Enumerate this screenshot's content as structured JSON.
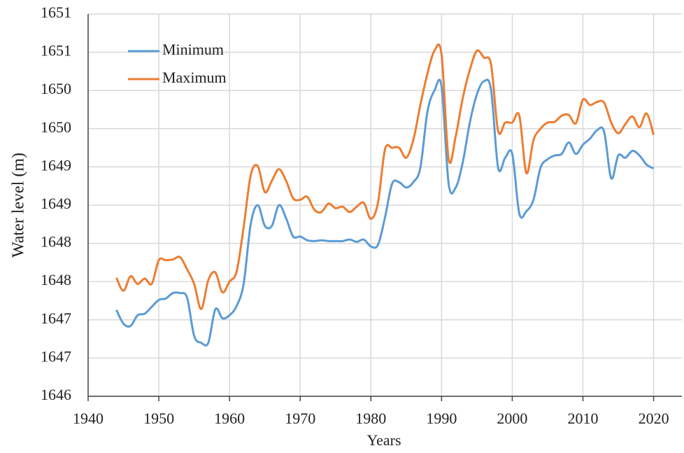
{
  "chart_data": {
    "type": "line",
    "xlabel": "Years",
    "ylabel": "Water level (m)",
    "x": [
      1944,
      1945,
      1946,
      1947,
      1948,
      1949,
      1950,
      1951,
      1952,
      1953,
      1954,
      1955,
      1956,
      1957,
      1958,
      1959,
      1960,
      1961,
      1962,
      1963,
      1964,
      1965,
      1966,
      1967,
      1968,
      1969,
      1970,
      1971,
      1972,
      1973,
      1974,
      1975,
      1976,
      1977,
      1978,
      1979,
      1980,
      1981,
      1982,
      1983,
      1984,
      1985,
      1986,
      1987,
      1988,
      1989,
      1990,
      1991,
      1992,
      1993,
      1994,
      1995,
      1996,
      1997,
      1998,
      1999,
      2000,
      2001,
      2002,
      2003,
      2004,
      2005,
      2006,
      2007,
      2008,
      2009,
      2010,
      2011,
      2012,
      2013,
      2014,
      2015,
      2016,
      2017,
      2018,
      2019,
      2020
    ],
    "series": [
      {
        "name": "Minimum",
        "color": "#5b9bd5",
        "values": [
          1647.13,
          1646.95,
          1646.92,
          1647.06,
          1647.08,
          1647.17,
          1647.26,
          1647.28,
          1647.35,
          1647.35,
          1647.29,
          1646.79,
          1646.7,
          1646.7,
          1647.14,
          1647.02,
          1647.06,
          1647.18,
          1647.47,
          1648.25,
          1648.5,
          1648.23,
          1648.23,
          1648.5,
          1648.33,
          1648.09,
          1648.09,
          1648.04,
          1648.03,
          1648.04,
          1648.03,
          1648.03,
          1648.03,
          1648.05,
          1648.02,
          1648.05,
          1647.96,
          1647.98,
          1648.34,
          1648.78,
          1648.8,
          1648.73,
          1648.8,
          1648.99,
          1649.72,
          1650.0,
          1650.05,
          1648.78,
          1648.73,
          1649.06,
          1649.58,
          1649.95,
          1650.12,
          1650.01,
          1648.99,
          1649.12,
          1649.17,
          1648.39,
          1648.42,
          1648.57,
          1648.99,
          1649.1,
          1649.15,
          1649.17,
          1649.32,
          1649.17,
          1649.29,
          1649.37,
          1649.48,
          1649.46,
          1648.85,
          1649.15,
          1649.12,
          1649.21,
          1649.15,
          1649.03,
          1648.98
        ]
      },
      {
        "name": "Maximum",
        "color": "#ed7d31",
        "values": [
          1647.55,
          1647.38,
          1647.57,
          1647.47,
          1647.54,
          1647.47,
          1647.78,
          1647.78,
          1647.79,
          1647.82,
          1647.66,
          1647.47,
          1647.14,
          1647.52,
          1647.62,
          1647.36,
          1647.5,
          1647.63,
          1648.21,
          1648.89,
          1649.01,
          1648.67,
          1648.82,
          1648.97,
          1648.82,
          1648.59,
          1648.57,
          1648.61,
          1648.44,
          1648.41,
          1648.52,
          1648.46,
          1648.48,
          1648.41,
          1648.48,
          1648.53,
          1648.32,
          1648.53,
          1649.23,
          1649.25,
          1649.25,
          1649.12,
          1649.35,
          1649.81,
          1650.22,
          1650.52,
          1650.47,
          1649.1,
          1649.4,
          1649.9,
          1650.27,
          1650.52,
          1650.43,
          1650.34,
          1649.47,
          1649.58,
          1649.58,
          1649.67,
          1648.92,
          1649.35,
          1649.5,
          1649.58,
          1649.59,
          1649.67,
          1649.68,
          1649.57,
          1649.88,
          1649.81,
          1649.85,
          1649.84,
          1649.58,
          1649.44,
          1649.56,
          1649.66,
          1649.52,
          1649.7,
          1649.42
        ]
      }
    ],
    "xlim": [
      1940,
      2024
    ],
    "xticks": [
      1940,
      1950,
      1960,
      1970,
      1980,
      1990,
      2000,
      2010,
      2020
    ],
    "ylim": [
      1646,
      1651
    ],
    "yticks": [
      1646,
      {
        "value": 1646.5,
        "label": "1647"
      },
      1647,
      {
        "value": 1647.5,
        "label": "1648"
      },
      1648,
      {
        "value": 1648.5,
        "label": "1649"
      },
      1649,
      {
        "value": 1649.5,
        "label": "1650"
      },
      1650,
      {
        "value": 1650.5,
        "label": "1651"
      },
      1651
    ],
    "grid": true,
    "legend": "upper left"
  }
}
